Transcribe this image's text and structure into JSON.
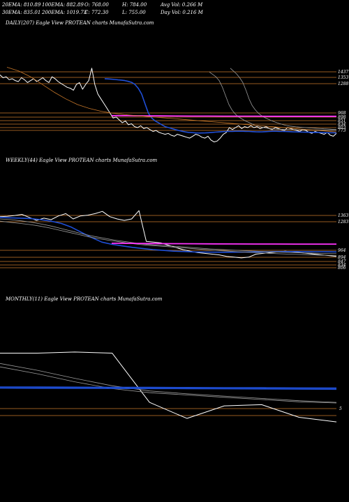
{
  "header": {
    "row1": [
      "20EMA: 810.89",
      "100EMA: 882.89",
      "O: 768.00",
      "H: 784.00",
      "Avg Vol: 0.266  M"
    ],
    "row2": [
      "30EMA: 835.01",
      "200EMA: 1019.73",
      "C: 772.30",
      "L: 755.00",
      "Day Vol: 0.216  M"
    ]
  },
  "colors": {
    "background": "#000000",
    "price": "#ffffff",
    "ema_blue": "#1f4fd8",
    "ema_pink": "#ff33ff",
    "level": "#c8782a",
    "ema_grey": "#9a9a9a"
  },
  "chart_data": [
    {
      "type": "line",
      "title": "DAILY(207) Eagle   View  PROTEAN  charts MunafaSutra.com",
      "y_ticks": [
        "1437",
        "1353",
        "1288",
        "968",
        "898",
        "851",
        "834",
        "803",
        "773"
      ],
      "series": [
        {
          "values": [
            1400,
            1370,
            1380,
            1350,
            1360,
            1340,
            1330,
            1370,
            1350,
            1320,
            1340,
            1360,
            1330,
            1350,
            1370,
            1340,
            1320,
            1380,
            1360,
            1330,
            1310,
            1290,
            1270,
            1260,
            1240,
            1300,
            1320,
            1250,
            1300,
            1340,
            1470,
            1300,
            1200,
            1150,
            1100,
            1050,
            1000,
            950,
            960,
            930,
            900,
            920,
            880,
            890,
            860,
            850,
            870,
            840,
            850,
            830,
            810,
            820,
            800,
            790,
            780,
            790,
            770,
            760,
            780,
            770,
            760,
            750,
            740,
            760,
            780,
            770,
            750,
            740,
            760,
            720,
            700,
            710,
            740,
            780,
            800,
            850,
            830,
            850,
            870,
            840,
            860,
            850,
            870,
            850,
            860,
            840,
            850,
            860,
            840,
            830,
            850,
            840,
            830,
            820,
            850,
            840,
            830,
            820,
            810,
            830,
            820,
            800,
            790,
            810,
            800,
            790,
            780,
            800,
            770,
            760,
            790
          ]
        },
        {
          "values": [
            1360,
            1358,
            1355,
            1352,
            1348,
            1345,
            1340,
            1332,
            1322,
            1300,
            1260,
            1200,
            1100,
            1000,
            950,
            920,
            900,
            880,
            860,
            850,
            840,
            830,
            820,
            812,
            805,
            800,
            798,
            795,
            793,
            794,
            795,
            797,
            800,
            803,
            805,
            808,
            810,
            811,
            811,
            812,
            812,
            812,
            811,
            810,
            808,
            806,
            805,
            806,
            808,
            810,
            812,
            812,
            811,
            810,
            809,
            808,
            806,
            805,
            804,
            803,
            802,
            801,
            800,
            800,
            799,
            798,
            797,
            796,
            796,
            795
          ]
        },
        {
          "values": [
            1430,
            1405,
            1380,
            1340,
            1270,
            1180,
            1090,
            1030,
            990,
            960,
            940,
            920,
            905,
            890,
            875,
            865,
            855,
            848,
            842,
            838,
            835,
            833,
            832,
            831,
            830,
            830,
            829,
            828,
            828,
            828,
            827,
            827,
            826,
            826,
            825,
            825,
            824,
            823,
            823,
            822
          ]
        },
        {
          "values": [
            1470,
            1440,
            1410,
            1370,
            1320,
            1240,
            1150,
            1080,
            1035,
            1000,
            975,
            955,
            940,
            925,
            912,
            900,
            890,
            880,
            872,
            866,
            862,
            858,
            855,
            852,
            850,
            848,
            846,
            844,
            842,
            840,
            838,
            836,
            834,
            832,
            830
          ]
        },
        {
          "values": [
            975,
            974,
            973,
            972,
            971,
            970,
            970,
            969,
            969,
            969,
            968,
            968,
            968,
            968,
            968
          ]
        },
        {
          "values": [
            1480,
            1440,
            1380,
            1300,
            1220,
            1150,
            1090,
            1050,
            1020,
            1000,
            985,
            975,
            965,
            955,
            945,
            935,
            925,
            915,
            905,
            895,
            885,
            875,
            865,
            855,
            845,
            835,
            825,
            815,
            805
          ]
        }
      ]
    },
    {
      "type": "line",
      "title": "WEEKLY(44) Eagle   View  PROTEAN  charts MunafaSutra.com",
      "y_ticks": [
        "1363",
        "1283",
        "964",
        "894",
        "847",
        "834",
        "806"
      ],
      "series": [
        {
          "values": [
            1330,
            1335,
            1345,
            1360,
            1320,
            1280,
            1310,
            1290,
            1340,
            1370,
            1300,
            1340,
            1350,
            1370,
            1400,
            1330,
            1300,
            1280,
            1300,
            1410,
            1000,
            990,
            980,
            950,
            920,
            890,
            870,
            850,
            840,
            830,
            820,
            800,
            790,
            780,
            790,
            830,
            840,
            850,
            860,
            870,
            860,
            850,
            840,
            830,
            820,
            810,
            800
          ]
        },
        {
          "values": [
            1320,
            1315,
            1310,
            1305,
            1290,
            1270,
            1240,
            1190,
            1120,
            1050,
            990,
            960,
            940,
            920,
            905,
            890,
            880,
            870,
            865,
            860,
            858,
            856,
            855,
            856,
            858,
            860,
            862,
            863,
            864,
            864,
            863,
            862,
            861,
            860
          ]
        },
        {
          "values": [
            1300,
            1290,
            1275,
            1255,
            1230,
            1200,
            1165,
            1130,
            1095,
            1065,
            1040,
            1015,
            995,
            975,
            960,
            950,
            940,
            930,
            920,
            910,
            900,
            892,
            885,
            878,
            872,
            866,
            860,
            855,
            850,
            846,
            842,
            838,
            835
          ]
        },
        {
          "values": [
            1270,
            1255,
            1240,
            1225,
            1205,
            1180,
            1150,
            1120,
            1090,
            1060,
            1035,
            1015,
            995,
            975,
            960,
            948,
            938,
            928,
            918,
            908,
            898,
            888,
            878,
            870,
            862,
            855,
            848,
            842,
            836,
            831,
            826,
            822,
            818,
            815,
            812
          ]
        },
        {
          "values": [
            975,
            973,
            971,
            969,
            968,
            967,
            966,
            965,
            965,
            964,
            964,
            964
          ]
        }
      ]
    },
    {
      "type": "line",
      "title": "MONTHLY(11) Eagle   View  PROTEAN  charts MunafaSutra.com",
      "y_ticks": [
        "5"
      ],
      "series": [
        {
          "values": [
            1330,
            1330,
            1340,
            1330,
            900,
            760,
            870,
            880,
            770,
            730
          ]
        },
        {
          "values": [
            1240,
            1180,
            1110,
            1045,
            1000,
            975,
            955,
            935,
            915,
            900
          ]
        },
        {
          "values": [
            1210,
            1150,
            1080,
            1020,
            985,
            965,
            945,
            925,
            905,
            895
          ]
        },
        {
          "values": [
            1035,
            1034,
            1033,
            1032,
            1031,
            1030,
            1029,
            1028,
            1026,
            1025
          ]
        },
        {
          "values": [
            1025,
            1024,
            1023,
            1022,
            1021,
            1020,
            1019,
            1018,
            1016,
            1015
          ]
        }
      ]
    }
  ]
}
